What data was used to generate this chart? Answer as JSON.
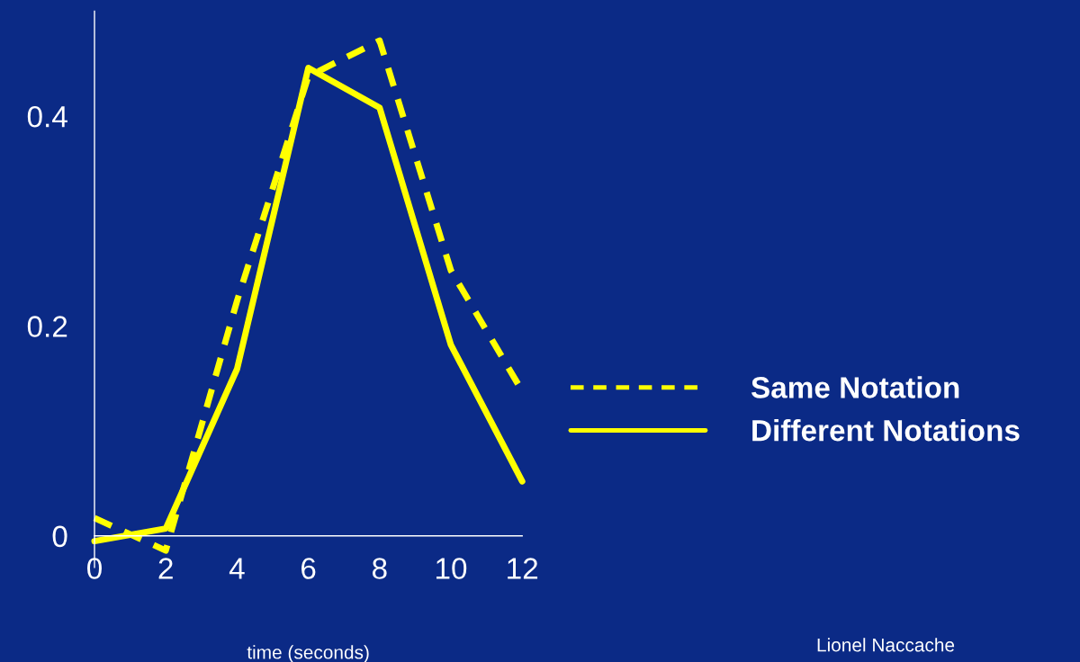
{
  "chart_data": {
    "type": "line",
    "xlabel": "time (seconds)",
    "x": [
      0,
      2,
      4,
      6,
      8,
      10,
      12
    ],
    "series": [
      {
        "name": "Same Notation",
        "color": "#ffff00",
        "line_style": "dashed",
        "values": [
          0.017,
          -0.014,
          0.224,
          0.438,
          0.472,
          0.253,
          0.138
        ]
      },
      {
        "name": "Different Notations",
        "color": "#ffff00",
        "line_style": "solid",
        "values": [
          -0.005,
          0.007,
          0.159,
          0.446,
          0.408,
          0.182,
          0.052
        ]
      }
    ],
    "xlim": [
      0,
      12
    ],
    "xticks": [
      0,
      2,
      4,
      6,
      8,
      10,
      12
    ],
    "ylim": [
      -0.03,
      0.5
    ],
    "yticks": [
      0,
      0.2,
      0.4
    ],
    "grid": false,
    "legend": "right",
    "marker": "none",
    "annotations": [
      "Lionel Naccache"
    ]
  }
}
